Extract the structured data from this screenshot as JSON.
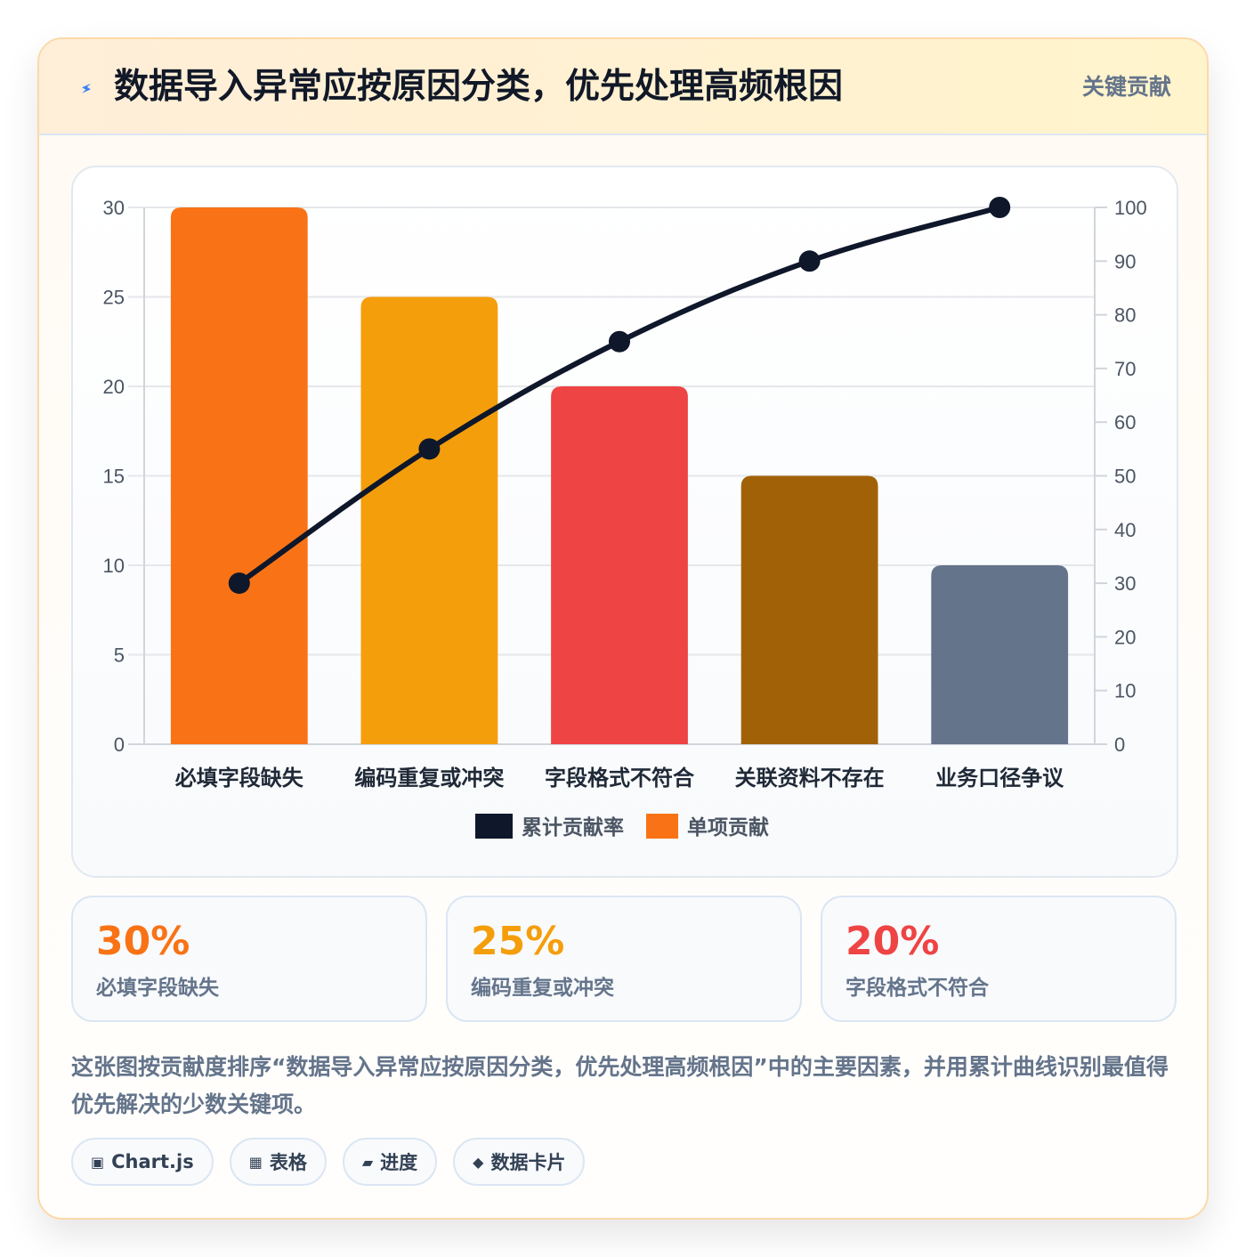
{
  "header": {
    "title": "数据导入异常应按原因分类，优先处理高频根因",
    "badge": "关键贡献",
    "icon": "lightning-icon"
  },
  "chart_data": {
    "type": "bar",
    "title": "",
    "categories": [
      "必填字段缺失",
      "编码重复或冲突",
      "字段格式不符合",
      "关联资料不存在",
      "业务口径争议"
    ],
    "series": [
      {
        "name": "单项贡献",
        "type": "bar",
        "axis": "left",
        "values": [
          30,
          25,
          20,
          15,
          10
        ],
        "colors": [
          "#f97316",
          "#f59e0b",
          "#ef4444",
          "#a16207",
          "#64748b"
        ]
      },
      {
        "name": "累计贡献率",
        "type": "line",
        "axis": "right",
        "values": [
          30,
          55,
          75,
          90,
          100
        ],
        "color": "#0f172a"
      }
    ],
    "y_left": {
      "min": 0,
      "max": 30,
      "ticks": [
        0,
        5,
        10,
        15,
        20,
        25,
        30
      ]
    },
    "y_right": {
      "min": 0,
      "max": 100,
      "ticks": [
        0,
        10,
        20,
        30,
        40,
        50,
        60,
        70,
        80,
        90,
        100
      ]
    },
    "legend": {
      "position": "bottom",
      "entries": [
        {
          "label": "累计贡献率",
          "color": "#0f172a"
        },
        {
          "label": "单项贡献",
          "color": "#f97316"
        }
      ]
    },
    "grid": true
  },
  "stats": [
    {
      "value": "30%",
      "label": "必填字段缺失",
      "color": "#f97316"
    },
    {
      "value": "25%",
      "label": "编码重复或冲突",
      "color": "#f59e0b"
    },
    {
      "value": "20%",
      "label": "字段格式不符合",
      "color": "#ef4444"
    }
  ],
  "description": "这张图按贡献度排序“数据导入异常应按原因分类，优先处理高频根因”中的主要因素，并用累计曲线识别最值得优先解决的少数关键项。",
  "tags": [
    {
      "icon": "▣",
      "label": "Chart.js"
    },
    {
      "icon": "▦",
      "label": "表格"
    },
    {
      "icon": "▰",
      "label": "进度"
    },
    {
      "icon": "◆",
      "label": "数据卡片"
    }
  ]
}
